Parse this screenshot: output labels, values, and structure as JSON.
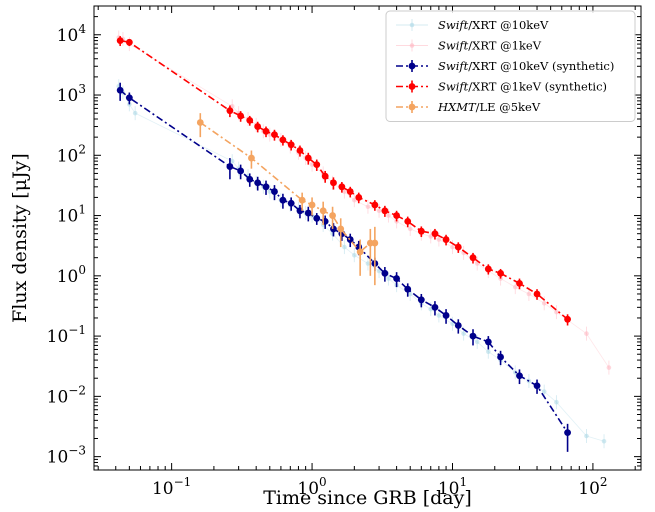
{
  "chart_data": {
    "type": "scatter",
    "xlabel": "Time since GRB [day]",
    "ylabel": "Flux density [μJy]",
    "x_scale": "log",
    "y_scale": "log",
    "xlim": [
      0.028,
      220
    ],
    "ylim": [
      0.0006,
      30000
    ],
    "x_ticks": [
      {
        "value": 0.1,
        "base": "10",
        "exp": "−1"
      },
      {
        "value": 1,
        "base": "10",
        "exp": "0"
      },
      {
        "value": 10,
        "base": "10",
        "exp": "1"
      },
      {
        "value": 100,
        "base": "10",
        "exp": "2"
      }
    ],
    "y_ticks": [
      {
        "value": 0.001,
        "base": "10",
        "exp": "−3"
      },
      {
        "value": 0.01,
        "base": "10",
        "exp": "−2"
      },
      {
        "value": 0.1,
        "base": "10",
        "exp": "−1"
      },
      {
        "value": 1,
        "base": "10",
        "exp": "0"
      },
      {
        "value": 10,
        "base": "10",
        "exp": "1"
      },
      {
        "value": 100,
        "base": "10",
        "exp": "2"
      },
      {
        "value": 1000,
        "base": "10",
        "exp": "3"
      },
      {
        "value": 10000,
        "base": "10",
        "exp": "4"
      }
    ],
    "grid": false,
    "legend_position": "top-right",
    "series": [
      {
        "legend_italic": "Swift",
        "legend_rest": "/XRT @10keV",
        "color": "#add8e6",
        "style": "raw",
        "x": [
          0.042,
          0.045,
          0.05,
          0.055,
          0.27,
          0.3,
          0.35,
          0.4,
          0.45,
          0.5,
          0.6,
          0.7,
          0.8,
          0.9,
          1.0,
          1.2,
          1.4,
          1.7,
          2.0,
          2.5,
          3.0,
          3.5,
          4.0,
          5.0,
          6.0,
          7.0,
          8.0,
          10.0,
          12.0,
          15.0,
          18.0,
          22.0,
          28.0,
          35.0,
          45.0,
          55.0,
          90.0,
          120.0
        ],
        "y": [
          1400,
          1100,
          700,
          500,
          80,
          60,
          45,
          35,
          30,
          25,
          18,
          15,
          13,
          11,
          10,
          7,
          5,
          3,
          2.2,
          1.6,
          1.2,
          0.9,
          0.7,
          0.5,
          0.35,
          0.28,
          0.22,
          0.16,
          0.11,
          0.08,
          0.055,
          0.04,
          0.025,
          0.018,
          0.012,
          0.008,
          0.0022,
          0.0018
        ]
      },
      {
        "legend_italic": "Swift",
        "legend_rest": "/XRT @1keV",
        "color": "#ffb6c1",
        "style": "raw",
        "x": [
          0.042,
          0.045,
          0.05,
          0.27,
          0.3,
          0.35,
          0.4,
          0.45,
          0.5,
          0.6,
          0.7,
          0.8,
          0.9,
          1.0,
          1.2,
          1.4,
          1.7,
          2.0,
          2.5,
          3.0,
          3.5,
          4.0,
          5.0,
          6.0,
          7.0,
          8.0,
          10.0,
          12.0,
          15.0,
          18.0,
          22.0,
          28.0,
          35.0,
          45.0,
          55.0,
          90.0,
          130.0
        ],
        "y": [
          9000,
          8500,
          7000,
          650,
          500,
          400,
          320,
          250,
          220,
          180,
          140,
          110,
          90,
          70,
          50,
          35,
          25,
          18,
          14,
          12,
          10,
          8,
          6,
          5,
          4.5,
          4,
          3,
          2.4,
          1.6,
          1.2,
          0.9,
          0.65,
          0.5,
          0.35,
          0.25,
          0.11,
          0.03
        ]
      },
      {
        "legend_italic": "Swift",
        "legend_rest": "/XRT @10keV (synthetic)",
        "color": "#00008b",
        "style": "marker-line",
        "x": [
          0.043,
          0.05,
          0.26,
          0.31,
          0.36,
          0.41,
          0.47,
          0.54,
          0.62,
          0.71,
          0.82,
          0.94,
          1.08,
          1.24,
          1.42,
          1.63,
          1.87,
          2.15,
          2.8,
          3.3,
          4.0,
          4.8,
          6.0,
          7.5,
          9.0,
          11.0,
          14.0,
          18.0,
          22.0,
          30.0,
          40.0,
          66.0
        ],
        "y": [
          1200,
          900,
          65,
          55,
          40,
          35,
          30,
          25,
          18,
          16,
          12,
          11,
          9,
          8,
          6,
          5,
          4,
          3,
          1.6,
          1.1,
          0.9,
          0.6,
          0.4,
          0.3,
          0.22,
          0.15,
          0.1,
          0.08,
          0.045,
          0.022,
          0.015,
          0.0025
        ],
        "yerr_lo": [
          400,
          200,
          25,
          15,
          10,
          9,
          8,
          7,
          5,
          4,
          3,
          3,
          2,
          2,
          1.5,
          1.2,
          1,
          0.8,
          0.4,
          0.3,
          0.25,
          0.15,
          0.1,
          0.08,
          0.06,
          0.04,
          0.03,
          0.02,
          0.012,
          0.006,
          0.004,
          0.0013
        ],
        "yerr_hi": [
          400,
          200,
          25,
          15,
          10,
          9,
          8,
          7,
          5,
          4,
          3,
          3,
          2,
          2,
          1.5,
          1.2,
          1,
          0.8,
          0.4,
          0.3,
          0.25,
          0.15,
          0.1,
          0.08,
          0.06,
          0.04,
          0.03,
          0.02,
          0.012,
          0.006,
          0.004,
          0.001
        ]
      },
      {
        "legend_italic": "Swift",
        "legend_rest": "/XRT @1keV (synthetic)",
        "color": "#ff0000",
        "style": "marker-line",
        "x": [
          0.043,
          0.05,
          0.26,
          0.31,
          0.36,
          0.41,
          0.47,
          0.54,
          0.62,
          0.71,
          0.82,
          0.94,
          1.08,
          1.24,
          1.42,
          1.63,
          1.87,
          2.15,
          2.8,
          3.3,
          4.0,
          4.8,
          6.0,
          7.5,
          9.0,
          11.0,
          14.0,
          18.0,
          22.0,
          30.0,
          40.0,
          66.0
        ],
        "y": [
          8000,
          7500,
          550,
          450,
          380,
          300,
          250,
          220,
          180,
          150,
          120,
          90,
          70,
          45,
          35,
          30,
          25,
          20,
          15,
          12,
          10,
          8,
          5.5,
          5,
          4,
          3,
          2,
          1.3,
          1.1,
          0.75,
          0.5,
          0.19
        ],
        "yerr_lo": [
          1500,
          1000,
          120,
          90,
          70,
          60,
          50,
          45,
          35,
          30,
          25,
          20,
          15,
          10,
          8,
          6,
          5,
          4,
          3,
          2.5,
          2,
          1.6,
          1.1,
          1,
          0.8,
          0.6,
          0.4,
          0.25,
          0.2,
          0.15,
          0.1,
          0.04
        ],
        "yerr_hi": [
          1500,
          1000,
          120,
          90,
          70,
          60,
          50,
          45,
          35,
          30,
          25,
          20,
          15,
          10,
          8,
          6,
          5,
          4,
          3,
          2.5,
          2,
          1.6,
          1.1,
          1,
          0.8,
          0.6,
          0.4,
          0.25,
          0.2,
          0.15,
          0.1,
          0.04
        ]
      },
      {
        "legend_italic": "HXMT",
        "legend_rest": "/LE @5keV",
        "color": "#f4a460",
        "style": "marker-line",
        "x": [
          0.16,
          0.37,
          0.85,
          1.0,
          1.2,
          1.4,
          1.6,
          2.2,
          2.6,
          2.8
        ],
        "y": [
          350,
          90,
          18,
          15,
          12,
          10,
          6,
          2.5,
          3.5,
          3.5
        ],
        "yerr_lo": [
          150,
          30,
          6,
          5,
          5,
          4,
          3,
          1.5,
          2.5,
          2.8
        ],
        "yerr_hi": [
          150,
          30,
          6,
          5,
          5,
          4,
          3,
          1.5,
          2.5,
          3
        ]
      }
    ]
  }
}
